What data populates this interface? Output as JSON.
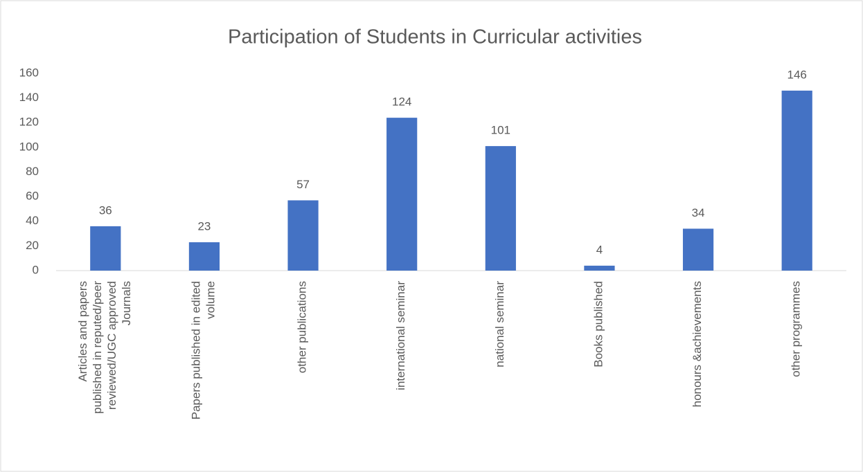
{
  "chart_data": {
    "type": "bar",
    "title": "Participation of Students in Curricular activities",
    "categories": [
      "Articles and papers published in reputed/peer reviewed/UGC approved Journals",
      "Papers published in edited volume",
      "other publications",
      "international seminar",
      "national seminar",
      "Books published",
      "honours &achievements",
      "other programmes"
    ],
    "values": [
      36,
      23,
      57,
      124,
      101,
      4,
      34,
      146
    ],
    "color": "#4472c4",
    "ylim": [
      0,
      160
    ],
    "yticks": [
      0,
      20,
      40,
      60,
      80,
      100,
      120,
      140,
      160
    ],
    "grid": false
  }
}
